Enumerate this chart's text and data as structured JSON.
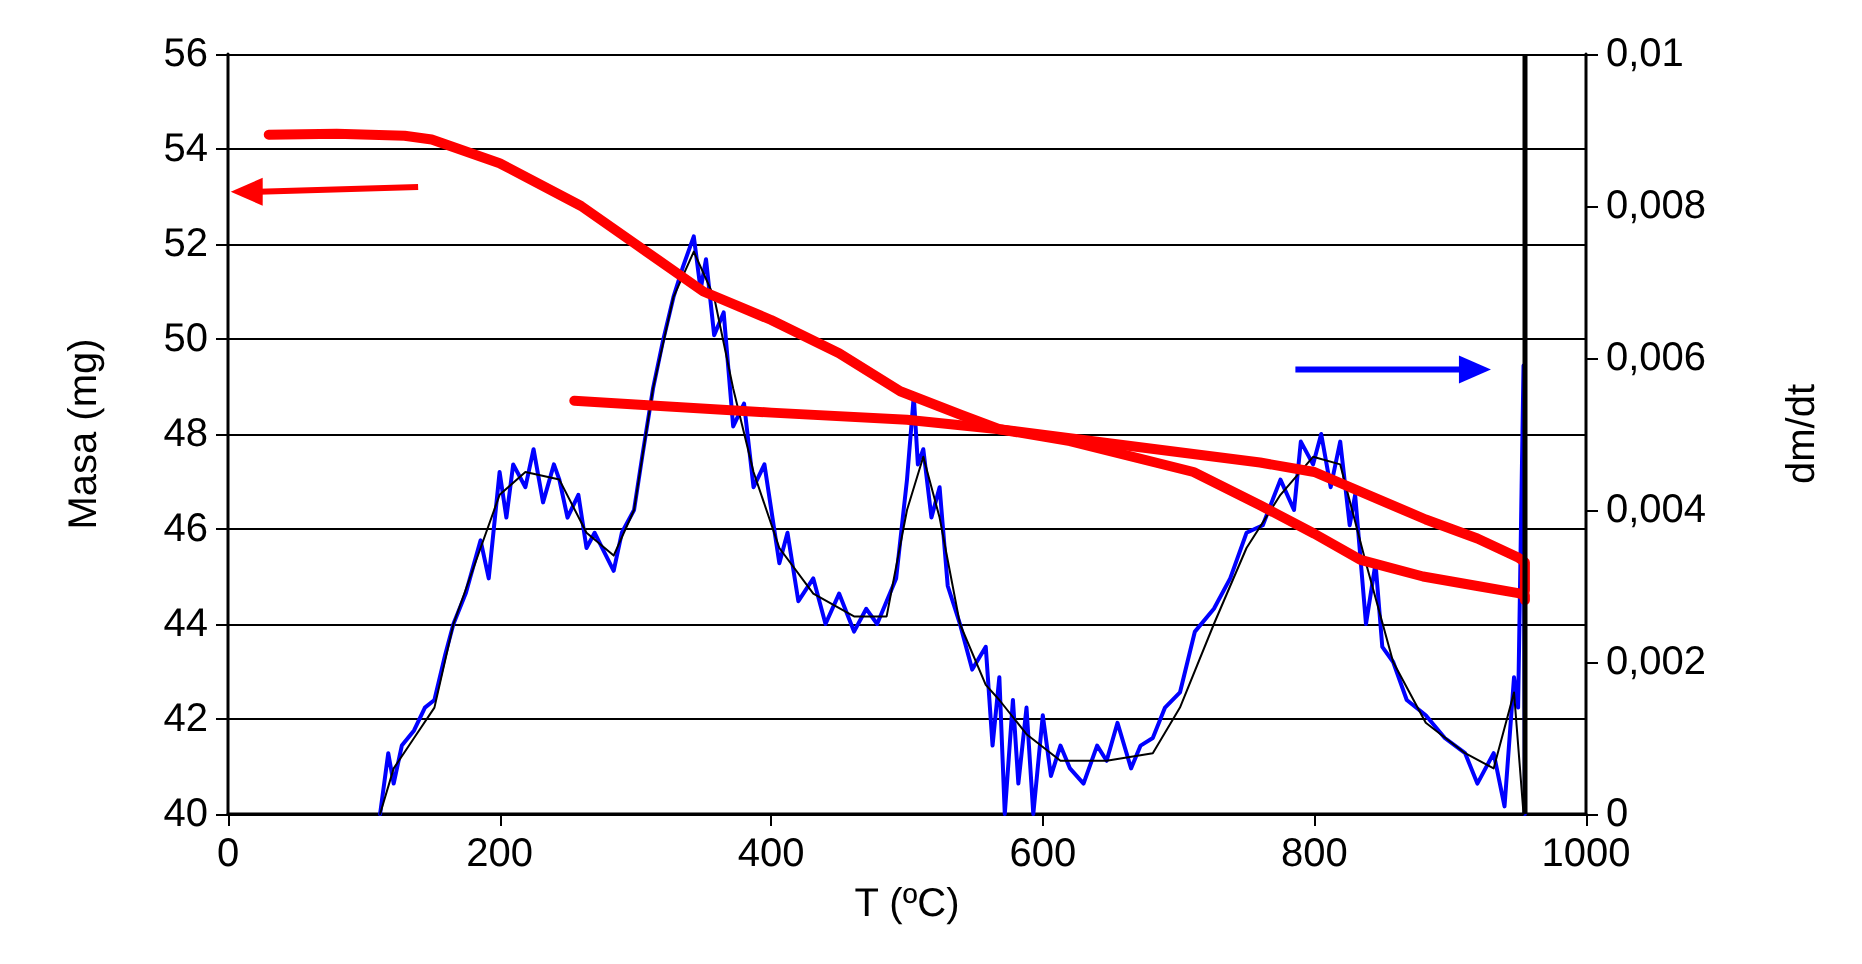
{
  "chart_data": {
    "type": "line",
    "xlabel": "T (ºC)",
    "ylabel": "Masa (mg)",
    "y2label": "dm/dt",
    "xlim": [
      0,
      1000
    ],
    "xticks": [
      0,
      200,
      400,
      600,
      800,
      1000
    ],
    "ylim": [
      40,
      56
    ],
    "yticks": [
      40,
      42,
      44,
      46,
      48,
      50,
      52,
      54,
      56
    ],
    "y2lim": [
      0,
      0.01
    ],
    "y2ticks": [
      {
        "value": 0,
        "label": "0"
      },
      {
        "value": 0.002,
        "label": "0,002"
      },
      {
        "value": 0.004,
        "label": "0,004"
      },
      {
        "value": 0.006,
        "label": "0,006"
      },
      {
        "value": 0.008,
        "label": "0,008"
      },
      {
        "value": 0.01,
        "label": "0,01"
      }
    ],
    "grid": "y",
    "marker": "none",
    "line_style": "solid",
    "ref_lines": [
      {
        "axis": "x",
        "value": 955,
        "label": null,
        "color": "#000000"
      }
    ],
    "series": [
      {
        "color": "#ff0000",
        "x": [
          30,
          80,
          130,
          150,
          200,
          260,
          300,
          350,
          400,
          450,
          495,
          540,
          568,
          620,
          711,
          760,
          800,
          834,
          880,
          920,
          950,
          955,
          955
        ],
        "values": [
          54.3,
          54.32,
          54.28,
          54.2,
          53.7,
          52.8,
          52.0,
          51.0,
          50.4,
          49.7,
          48.9,
          48.4,
          48.1,
          47.85,
          47.2,
          46.5,
          45.9,
          45.35,
          45.0,
          44.8,
          44.65,
          44.6,
          44.5
        ]
      },
      {
        "color": "#ff0000",
        "x": [
          255,
          300,
          400,
          500,
          568,
          650,
          760,
          800,
          882,
          920,
          950,
          955,
          955
        ],
        "values": [
          48.7,
          48.62,
          48.45,
          48.3,
          48.1,
          47.8,
          47.4,
          47.2,
          46.2,
          45.8,
          45.4,
          45.3,
          44.7
        ]
      },
      {
        "color": "#0000ff",
        "axis": "y2",
        "x": [
          112,
          118,
          122,
          128,
          137,
          145,
          152,
          160,
          166,
          175,
          186,
          192,
          200,
          205,
          210,
          219,
          225,
          232,
          240,
          244,
          250,
          258,
          264,
          270,
          284,
          290,
          299,
          305,
          313,
          320,
          328,
          335,
          343,
          348,
          352,
          358,
          365,
          372,
          380,
          387,
          395,
          406,
          412,
          420,
          431,
          440,
          450,
          461,
          470,
          478,
          485,
          492,
          500,
          505,
          508,
          512,
          518,
          524,
          530,
          539,
          548,
          558,
          563,
          568,
          572,
          578,
          582,
          588,
          593,
          600,
          606,
          613,
          620,
          630,
          640,
          647,
          655,
          665,
          672,
          681,
          690,
          701,
          712,
          726,
          738,
          750,
          762,
          775,
          785,
          790,
          799,
          805,
          812,
          819,
          826,
          830,
          838,
          845,
          850,
          858,
          868,
          882,
          896,
          911,
          920,
          932,
          940,
          947,
          950,
          954,
          955
        ],
        "values": [
          0,
          0.0008,
          0.0004,
          0.0009,
          0.0011,
          0.0014,
          0.0015,
          0.0021,
          0.0025,
          0.0029,
          0.0036,
          0.0031,
          0.0045,
          0.0039,
          0.0046,
          0.0043,
          0.0048,
          0.0041,
          0.0046,
          0.0044,
          0.0039,
          0.0042,
          0.0035,
          0.0037,
          0.0032,
          0.0037,
          0.004,
          0.0047,
          0.0056,
          0.0062,
          0.0068,
          0.0072,
          0.0076,
          0.0069,
          0.0073,
          0.0063,
          0.0066,
          0.0051,
          0.0054,
          0.0043,
          0.0046,
          0.0033,
          0.0037,
          0.0028,
          0.0031,
          0.0025,
          0.0029,
          0.0024,
          0.0027,
          0.0025,
          0.0028,
          0.0031,
          0.0044,
          0.0055,
          0.0046,
          0.0048,
          0.0039,
          0.0043,
          0.003,
          0.0025,
          0.0019,
          0.0022,
          0.0009,
          0.0018,
          0,
          0.0015,
          0.0004,
          0.0014,
          0,
          0.0013,
          0.0005,
          0.0009,
          0.0006,
          0.0004,
          0.0009,
          0.0007,
          0.0012,
          0.0006,
          0.0009,
          0.001,
          0.0014,
          0.0016,
          0.0024,
          0.0027,
          0.0031,
          0.0037,
          0.0038,
          0.0044,
          0.004,
          0.0049,
          0.0046,
          0.005,
          0.0043,
          0.0049,
          0.0038,
          0.0042,
          0.0025,
          0.0033,
          0.0022,
          0.002,
          0.0015,
          0.0013,
          0.001,
          0.0008,
          0.0004,
          0.0008,
          0.0001,
          0.0018,
          0.0014,
          0.0059,
          0
        ]
      },
      {
        "color": "#000000",
        "axis": "y2",
        "x": [
          112,
          122,
          137,
          152,
          166,
          186,
          200,
          219,
          244,
          264,
          284,
          299,
          313,
          328,
          343,
          358,
          372,
          387,
          406,
          431,
          461,
          485,
          500,
          512,
          524,
          539,
          558,
          568,
          588,
          613,
          647,
          681,
          701,
          726,
          750,
          775,
          799,
          819,
          838,
          858,
          882,
          911,
          932,
          947,
          954
        ],
        "values": [
          0,
          0.0006,
          0.001,
          0.0014,
          0.0025,
          0.0035,
          0.0042,
          0.0045,
          0.0044,
          0.0037,
          0.0034,
          0.004,
          0.0056,
          0.0068,
          0.0074,
          0.0068,
          0.0056,
          0.0045,
          0.0035,
          0.0029,
          0.0026,
          0.0026,
          0.004,
          0.0047,
          0.0039,
          0.0025,
          0.0017,
          0.0015,
          0.00105,
          0.0007,
          0.0007,
          0.0008,
          0.0014,
          0.0025,
          0.0035,
          0.0042,
          0.0047,
          0.0046,
          0.0033,
          0.002,
          0.0012,
          0.0008,
          0.0006,
          0.0016,
          0
        ]
      }
    ]
  }
}
